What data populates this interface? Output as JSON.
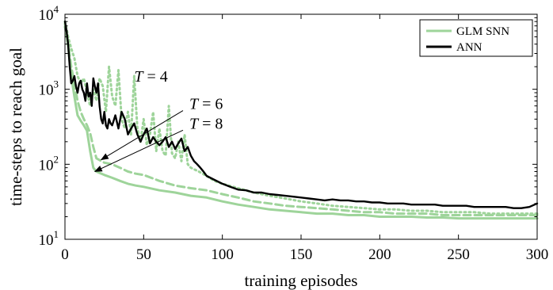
{
  "chart_data": {
    "type": "line",
    "xlabel": "training episodes",
    "ylabel": "time-steps to reach goal",
    "xlim": [
      0,
      300
    ],
    "ylim": [
      10,
      10000
    ],
    "yscale": "log",
    "xticks": [
      0,
      50,
      100,
      150,
      200,
      250,
      300
    ],
    "xtick_labels": [
      "0",
      "50",
      "100",
      "150",
      "200",
      "250",
      "300"
    ],
    "yticks": [
      10,
      100,
      1000,
      10000
    ],
    "ytick_labels": [
      {
        "base": "10",
        "exp": "1"
      },
      {
        "base": "10",
        "exp": "2"
      },
      {
        "base": "10",
        "exp": "3"
      },
      {
        "base": "10",
        "exp": "4"
      }
    ],
    "grid": false,
    "legend_position": "top-right",
    "legend": [
      {
        "label": "GLM SNN",
        "color": "#9ed49a",
        "style": "solid"
      },
      {
        "label": "ANN",
        "color": "#000000",
        "style": "solid"
      }
    ],
    "series": [
      {
        "name": "GLM SNN",
        "line_label": "T = 8",
        "color": "#9ed49a",
        "style": "solid",
        "width": 3,
        "points": [
          [
            0,
            7500
          ],
          [
            1,
            5200
          ],
          [
            2,
            3800
          ],
          [
            3,
            2300
          ],
          [
            4,
            1500
          ],
          [
            5,
            1100
          ],
          [
            6,
            800
          ],
          [
            7,
            600
          ],
          [
            8,
            450
          ],
          [
            10,
            380
          ],
          [
            12,
            330
          ],
          [
            14,
            280
          ],
          [
            16,
            150
          ],
          [
            18,
            90
          ],
          [
            20,
            80
          ],
          [
            25,
            72
          ],
          [
            30,
            66
          ],
          [
            35,
            60
          ],
          [
            40,
            55
          ],
          [
            45,
            52
          ],
          [
            50,
            50
          ],
          [
            60,
            45
          ],
          [
            70,
            42
          ],
          [
            80,
            38
          ],
          [
            90,
            36
          ],
          [
            100,
            32
          ],
          [
            110,
            29
          ],
          [
            120,
            27
          ],
          [
            130,
            25
          ],
          [
            140,
            24
          ],
          [
            150,
            23
          ],
          [
            160,
            22
          ],
          [
            170,
            22
          ],
          [
            180,
            21
          ],
          [
            190,
            21
          ],
          [
            200,
            20
          ],
          [
            210,
            20
          ],
          [
            220,
            20
          ],
          [
            230,
            19.5
          ],
          [
            240,
            19.5
          ],
          [
            250,
            19
          ],
          [
            260,
            19
          ],
          [
            270,
            19
          ],
          [
            280,
            19
          ],
          [
            290,
            19
          ],
          [
            300,
            19
          ]
        ]
      },
      {
        "name": "GLM SNN",
        "line_label": "T = 6",
        "color": "#9ed49a",
        "style": "dashed",
        "width": 3,
        "points": [
          [
            0,
            6800
          ],
          [
            2,
            4200
          ],
          [
            4,
            2000
          ],
          [
            6,
            1200
          ],
          [
            8,
            700
          ],
          [
            10,
            500
          ],
          [
            12,
            400
          ],
          [
            14,
            330
          ],
          [
            16,
            260
          ],
          [
            18,
            170
          ],
          [
            20,
            120
          ],
          [
            25,
            105
          ],
          [
            30,
            100
          ],
          [
            35,
            90
          ],
          [
            40,
            80
          ],
          [
            45,
            75
          ],
          [
            50,
            72
          ],
          [
            60,
            60
          ],
          [
            70,
            52
          ],
          [
            80,
            48
          ],
          [
            90,
            45
          ],
          [
            100,
            40
          ],
          [
            110,
            36
          ],
          [
            120,
            32
          ],
          [
            130,
            30
          ],
          [
            140,
            28
          ],
          [
            150,
            27
          ],
          [
            160,
            26
          ],
          [
            170,
            25
          ],
          [
            180,
            24
          ],
          [
            190,
            23
          ],
          [
            200,
            23
          ],
          [
            210,
            22
          ],
          [
            220,
            22
          ],
          [
            230,
            22
          ],
          [
            240,
            21
          ],
          [
            250,
            21
          ],
          [
            260,
            21
          ],
          [
            270,
            21
          ],
          [
            280,
            21
          ],
          [
            290,
            21
          ],
          [
            300,
            21
          ]
        ]
      },
      {
        "name": "GLM SNN",
        "line_label": "T = 4",
        "color": "#9ed49a",
        "style": "dotted",
        "width": 3,
        "points": [
          [
            0,
            8000
          ],
          [
            2,
            5000
          ],
          [
            4,
            3500
          ],
          [
            6,
            2600
          ],
          [
            8,
            1500
          ],
          [
            10,
            1200
          ],
          [
            12,
            1400
          ],
          [
            14,
            900
          ],
          [
            16,
            600
          ],
          [
            18,
            1000
          ],
          [
            20,
            700
          ],
          [
            22,
            1400
          ],
          [
            24,
            1100
          ],
          [
            26,
            500
          ],
          [
            28,
            2000
          ],
          [
            30,
            800
          ],
          [
            32,
            600
          ],
          [
            34,
            1800
          ],
          [
            36,
            400
          ],
          [
            38,
            300
          ],
          [
            40,
            500
          ],
          [
            42,
            250
          ],
          [
            44,
            1500
          ],
          [
            46,
            300
          ],
          [
            48,
            200
          ],
          [
            50,
            400
          ],
          [
            52,
            180
          ],
          [
            54,
            250
          ],
          [
            56,
            500
          ],
          [
            58,
            150
          ],
          [
            60,
            300
          ],
          [
            62,
            150
          ],
          [
            64,
            130
          ],
          [
            66,
            600
          ],
          [
            68,
            140
          ],
          [
            70,
            120
          ],
          [
            72,
            200
          ],
          [
            74,
            110
          ],
          [
            76,
            250
          ],
          [
            78,
            100
          ],
          [
            80,
            90
          ],
          [
            85,
            80
          ],
          [
            90,
            70
          ],
          [
            95,
            60
          ],
          [
            100,
            55
          ],
          [
            110,
            48
          ],
          [
            120,
            42
          ],
          [
            130,
            38
          ],
          [
            140,
            35
          ],
          [
            150,
            32
          ],
          [
            160,
            30
          ],
          [
            170,
            28
          ],
          [
            180,
            27
          ],
          [
            190,
            26
          ],
          [
            200,
            25
          ],
          [
            210,
            25
          ],
          [
            220,
            24
          ],
          [
            230,
            24
          ],
          [
            240,
            23
          ],
          [
            250,
            23
          ],
          [
            260,
            23
          ],
          [
            270,
            22
          ],
          [
            280,
            22
          ],
          [
            290,
            22
          ],
          [
            300,
            22
          ]
        ]
      },
      {
        "name": "ANN",
        "color": "#000000",
        "style": "solid",
        "width": 2.4,
        "points": [
          [
            0,
            8000
          ],
          [
            1,
            6000
          ],
          [
            2,
            4000
          ],
          [
            3,
            2000
          ],
          [
            4,
            1200
          ],
          [
            5,
            1300
          ],
          [
            6,
            1500
          ],
          [
            7,
            1100
          ],
          [
            8,
            900
          ],
          [
            9,
            1200
          ],
          [
            10,
            1300
          ],
          [
            11,
            1000
          ],
          [
            12,
            900
          ],
          [
            13,
            700
          ],
          [
            14,
            1200
          ],
          [
            15,
            800
          ],
          [
            16,
            900
          ],
          [
            17,
            600
          ],
          [
            18,
            1400
          ],
          [
            19,
            1100
          ],
          [
            20,
            900
          ],
          [
            21,
            1200
          ],
          [
            22,
            600
          ],
          [
            23,
            400
          ],
          [
            24,
            350
          ],
          [
            25,
            500
          ],
          [
            26,
            330
          ],
          [
            27,
            300
          ],
          [
            28,
            400
          ],
          [
            29,
            350
          ],
          [
            30,
            330
          ],
          [
            32,
            450
          ],
          [
            34,
            300
          ],
          [
            36,
            500
          ],
          [
            38,
            400
          ],
          [
            40,
            250
          ],
          [
            42,
            300
          ],
          [
            44,
            350
          ],
          [
            46,
            250
          ],
          [
            48,
            200
          ],
          [
            50,
            250
          ],
          [
            52,
            300
          ],
          [
            54,
            190
          ],
          [
            56,
            230
          ],
          [
            58,
            200
          ],
          [
            60,
            180
          ],
          [
            62,
            200
          ],
          [
            64,
            230
          ],
          [
            66,
            170
          ],
          [
            68,
            200
          ],
          [
            70,
            160
          ],
          [
            72,
            190
          ],
          [
            74,
            220
          ],
          [
            76,
            150
          ],
          [
            78,
            170
          ],
          [
            80,
            130
          ],
          [
            82,
            110
          ],
          [
            84,
            100
          ],
          [
            86,
            90
          ],
          [
            88,
            80
          ],
          [
            90,
            70
          ],
          [
            95,
            62
          ],
          [
            100,
            55
          ],
          [
            105,
            50
          ],
          [
            110,
            46
          ],
          [
            115,
            45
          ],
          [
            120,
            42
          ],
          [
            125,
            42
          ],
          [
            130,
            40
          ],
          [
            135,
            39
          ],
          [
            140,
            38
          ],
          [
            145,
            37
          ],
          [
            150,
            36
          ],
          [
            155,
            35
          ],
          [
            160,
            34
          ],
          [
            165,
            33
          ],
          [
            170,
            34
          ],
          [
            175,
            33
          ],
          [
            180,
            33
          ],
          [
            185,
            32
          ],
          [
            190,
            32
          ],
          [
            195,
            31
          ],
          [
            200,
            31
          ],
          [
            205,
            30
          ],
          [
            210,
            30
          ],
          [
            215,
            30
          ],
          [
            220,
            29
          ],
          [
            225,
            29
          ],
          [
            230,
            29
          ],
          [
            235,
            29
          ],
          [
            240,
            28
          ],
          [
            245,
            28
          ],
          [
            250,
            28
          ],
          [
            255,
            28
          ],
          [
            260,
            27
          ],
          [
            265,
            27
          ],
          [
            270,
            27
          ],
          [
            275,
            27
          ],
          [
            280,
            27
          ],
          [
            285,
            26
          ],
          [
            290,
            26
          ],
          [
            295,
            27
          ],
          [
            300,
            30
          ]
        ]
      }
    ],
    "annotations": [
      {
        "text_var": "T",
        "text_rest": " = 4",
        "label_at": [
          44,
          1200
        ]
      },
      {
        "text_var": "T",
        "text_rest": " = 6",
        "label_at": [
          79,
          520
        ],
        "arrow_from": [
          75,
          520
        ],
        "arrow_to": [
          23,
          115
        ]
      },
      {
        "text_var": "T",
        "text_rest": " = 8",
        "label_at": [
          79,
          285
        ],
        "arrow_from": [
          75,
          285
        ],
        "arrow_to": [
          19,
          80
        ]
      }
    ]
  }
}
